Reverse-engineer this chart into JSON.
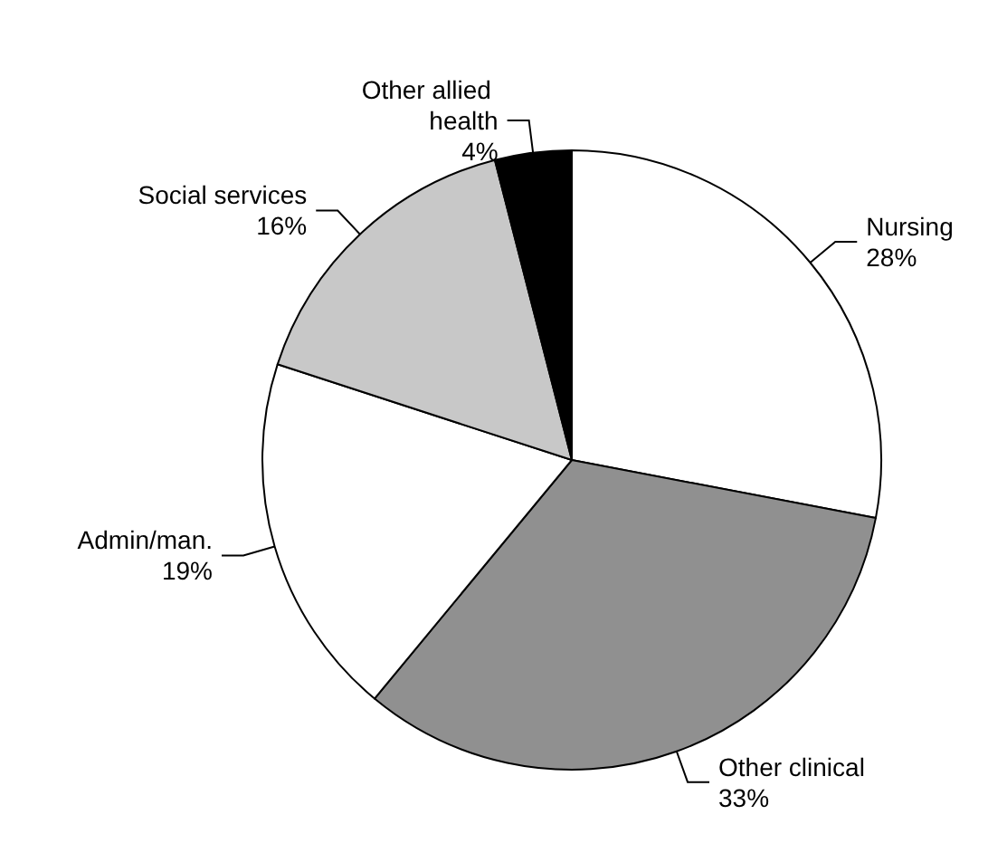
{
  "chart_data": {
    "type": "pie",
    "categories": [
      "Nursing",
      "Other clinical",
      "Admin/man.",
      "Social services",
      "Other allied health"
    ],
    "values": [
      28,
      33,
      19,
      16,
      4
    ],
    "value_labels": [
      "28%",
      "33%",
      "19%",
      "16%",
      "4%"
    ],
    "colors": [
      "#ffffff",
      "#909090",
      "#ffffff",
      "#c8c8c8",
      "#000000"
    ],
    "legend": false
  }
}
